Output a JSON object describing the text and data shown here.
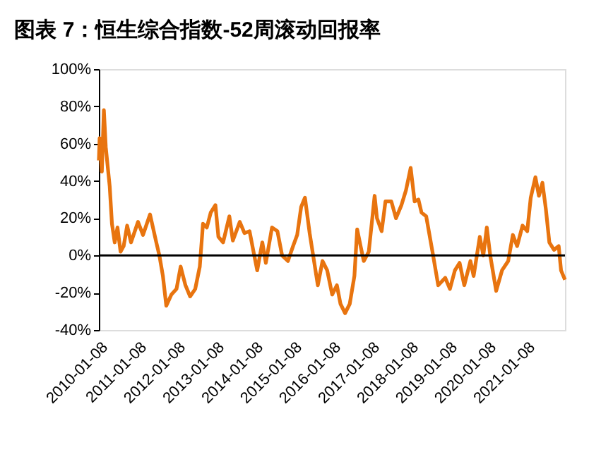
{
  "chart_data": {
    "type": "line",
    "title": "图表 7：恒生综合指数-52周滚动回报率",
    "x": [
      "2010-01-08",
      "2010-01-15",
      "2010-02-05",
      "2010-02-24",
      "2010-03-14",
      "2010-04-20",
      "2010-05-11",
      "2010-06-06",
      "2010-07-02",
      "2010-07-31",
      "2010-08-29",
      "2010-10-01",
      "2010-11-06",
      "2011-01-11",
      "2011-02-27",
      "2011-05-04",
      "2011-07-02",
      "2011-07-31",
      "2011-09-02",
      "2011-10-04",
      "2011-11-21",
      "2012-01-08",
      "2012-02-16",
      "2012-04-01",
      "2012-05-15",
      "2012-07-02",
      "2012-08-14",
      "2012-09-13",
      "2012-10-19",
      "2012-11-25",
      "2013-01-08",
      "2013-02-05",
      "2013-03-21",
      "2013-05-19",
      "2013-06-21",
      "2013-08-25",
      "2013-10-08",
      "2013-11-25",
      "2014-01-08",
      "2014-02-05",
      "2014-03-25",
      "2014-04-27",
      "2014-06-24",
      "2014-08-14",
      "2014-09-27",
      "2014-11-21",
      "2015-01-08",
      "2015-02-16",
      "2015-03-25",
      "2015-04-30",
      "2015-06-13",
      "2015-08-29",
      "2015-10-12",
      "2015-11-25",
      "2016-01-11",
      "2016-02-24",
      "2016-03-29",
      "2016-05-11",
      "2016-06-24",
      "2016-08-07",
      "2016-09-02",
      "2016-10-04",
      "2016-11-03",
      "2016-12-20",
      "2017-01-22",
      "2017-02-13",
      "2017-03-07",
      "2017-04-20",
      "2017-05-26",
      "2017-07-20",
      "2017-09-02",
      "2017-10-23",
      "2017-12-05",
      "2018-01-18",
      "2018-02-24",
      "2018-04-01",
      "2018-04-30",
      "2018-06-13",
      "2018-08-11",
      "2018-10-04",
      "2018-12-09",
      "2019-01-22",
      "2019-03-10",
      "2019-04-23",
      "2019-06-06",
      "2019-08-03",
      "2019-09-02",
      "2019-10-30",
      "2019-12-02",
      "2020-01-04",
      "2020-02-05",
      "2020-04-01",
      "2020-05-26",
      "2020-07-23",
      "2020-09-05",
      "2020-10-15",
      "2020-12-05",
      "2021-01-18",
      "2021-02-20",
      "2021-04-05",
      "2021-05-08",
      "2021-06-10",
      "2021-07-12",
      "2021-08-14",
      "2021-09-27",
      "2021-11-10",
      "2021-12-02",
      "2022-01-08"
    ],
    "series": [
      {
        "color": "#e8740f",
        "values": [
          51,
          63,
          45,
          78,
          58,
          37,
          17,
          7,
          15,
          2,
          5,
          16,
          7,
          18,
          11,
          22,
          7,
          0,
          -11,
          -27,
          -21,
          -18,
          -6,
          -16,
          -22,
          -18,
          -6,
          17,
          15,
          23,
          27,
          10,
          7,
          21,
          8,
          18,
          12,
          13,
          0,
          -8,
          7,
          -4,
          15,
          13,
          0,
          -3,
          5,
          11,
          26,
          31,
          12,
          -16,
          -3,
          -8,
          -21,
          -16,
          -26,
          -31,
          -26,
          -11,
          14,
          5,
          -3,
          2,
          20,
          32,
          20,
          13,
          29,
          29,
          20,
          27,
          35,
          47,
          29,
          30,
          23,
          21,
          2,
          -16,
          -12,
          -18,
          -8,
          -4,
          -16,
          -3,
          -11,
          10,
          0,
          15,
          0,
          -19,
          -8,
          -3,
          11,
          5,
          16,
          13,
          31,
          42,
          32,
          39,
          25,
          7,
          3,
          5,
          -8,
          -13
        ]
      }
    ],
    "xlim": [
      "2010-01-08",
      "2022-01-08"
    ],
    "xticks": [
      "2010-01-08",
      "2011-01-08",
      "2012-01-08",
      "2013-01-08",
      "2014-01-08",
      "2015-01-08",
      "2016-01-08",
      "2017-01-08",
      "2018-01-08",
      "2019-01-08",
      "2020-01-08",
      "2021-01-08"
    ],
    "ylim": [
      -40,
      100
    ],
    "yticks": [
      {
        "value": -40,
        "label": "-40%"
      },
      {
        "value": -20,
        "label": "-20%"
      },
      {
        "value": 0,
        "label": "0%"
      },
      {
        "value": 20,
        "label": "20%"
      },
      {
        "value": 40,
        "label": "40%"
      },
      {
        "value": 60,
        "label": "60%"
      },
      {
        "value": 80,
        "label": "80%"
      },
      {
        "value": 100,
        "label": "100%"
      }
    ],
    "ref_lines": [
      {
        "axis": "y",
        "value": 0,
        "color": "#000000"
      }
    ],
    "grid": false,
    "marker": "none",
    "line_style": "solid"
  }
}
